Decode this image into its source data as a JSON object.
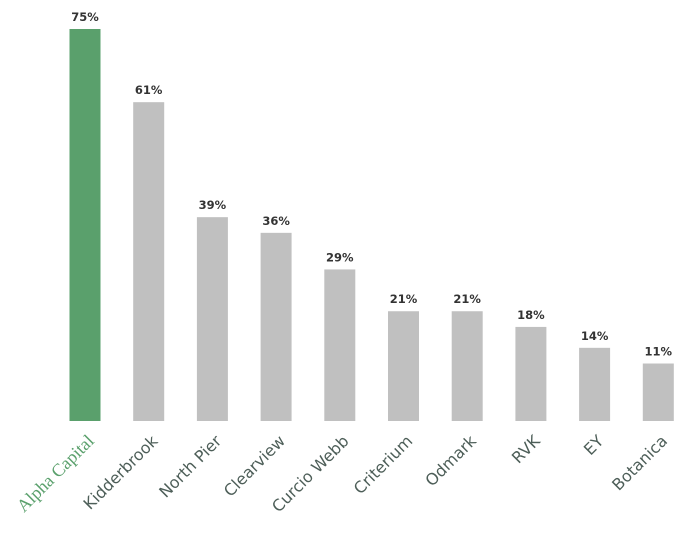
{
  "chart_data": {
    "type": "bar",
    "categories": [
      "Alpha Capital",
      "Kidderbrook",
      "North Pier",
      "Clearview",
      "Curcio Webb",
      "Criterium",
      "Odmark",
      "RVK",
      "EY",
      "Botanica"
    ],
    "values": [
      75,
      61,
      39,
      36,
      29,
      21,
      21,
      18,
      14,
      11
    ],
    "value_labels": [
      "75%",
      "61%",
      "39%",
      "36%",
      "29%",
      "21%",
      "21%",
      "18%",
      "14%",
      "11%"
    ],
    "colors": [
      "#5aa06c",
      "#c0c0c0",
      "#c0c0c0",
      "#c0c0c0",
      "#c0c0c0",
      "#c0c0c0",
      "#c0c0c0",
      "#c0c0c0",
      "#c0c0c0",
      "#c0c0c0"
    ]
  }
}
